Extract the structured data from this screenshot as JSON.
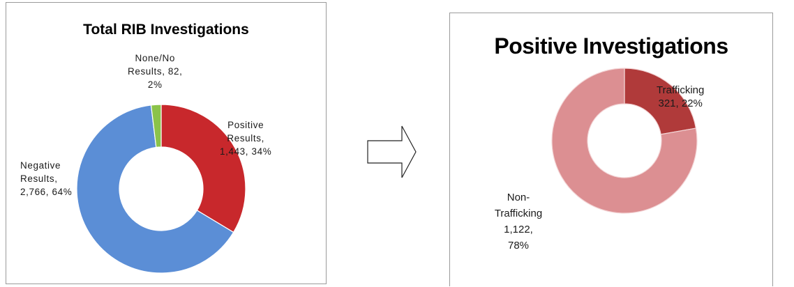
{
  "chart_data": [
    {
      "type": "pie",
      "donut": true,
      "title": "Total RIB Investigations",
      "slices": [
        {
          "name": "Positive Results",
          "value": 1443,
          "percent": 34,
          "color": "#c8282c",
          "label_lines": [
            "Positive",
            "Results,",
            "1,443, 34%"
          ]
        },
        {
          "name": "Negative Results",
          "value": 2766,
          "percent": 64,
          "color": "#5b8ed6",
          "label_lines": [
            "Negative",
            "Results,",
            "2,766, 64%"
          ]
        },
        {
          "name": "None/No Results",
          "value": 82,
          "percent": 2,
          "color": "#8bc34a",
          "label_lines": [
            "None/No",
            "Results, 82,",
            "2%"
          ]
        }
      ]
    },
    {
      "type": "pie",
      "donut": true,
      "title": "Positive Investigations",
      "slices": [
        {
          "name": "Trafficking",
          "value": 321,
          "percent": 22,
          "color": "#b03a3a",
          "label_lines": [
            "Trafficking",
            "321, 22%"
          ]
        },
        {
          "name": "Non-Trafficking",
          "value": 1122,
          "percent": 78,
          "color": "#dc8f92",
          "label_lines": [
            "Non-",
            "Trafficking",
            "1,122,",
            "78%"
          ]
        }
      ]
    }
  ],
  "arrow": {
    "direction": "right",
    "icon": "right-arrow-icon"
  }
}
